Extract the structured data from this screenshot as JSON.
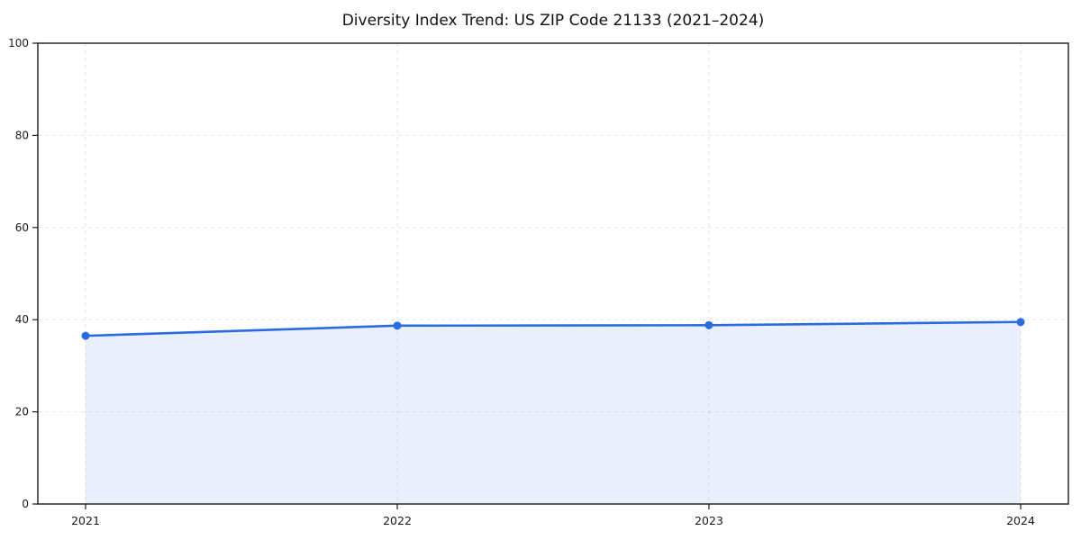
{
  "page": {
    "background_color": "#ffffff"
  },
  "chart_data": {
    "type": "line",
    "title": "Diversity Index Trend: US ZIP Code 21133 (2021–2024)",
    "categories": [
      "2021",
      "2022",
      "2023",
      "2024"
    ],
    "values": [
      36.5,
      38.7,
      38.8,
      39.5
    ],
    "xlabel": "",
    "ylabel": "",
    "ylim": [
      0,
      100
    ],
    "yticks": [
      0,
      20,
      40,
      60,
      80,
      100
    ],
    "grid": true,
    "grid_style": "dashed",
    "legend_position": "none",
    "area_fill": true,
    "marker": "circle",
    "line_color": "#2a6be0",
    "area_opacity": 0.1,
    "grid_color": "#e2e2e2",
    "axis_color": "#1a1a1a",
    "title_color": "#111111"
  }
}
